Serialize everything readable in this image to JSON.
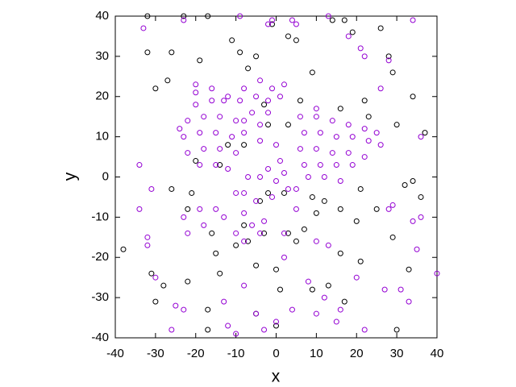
{
  "chart_data": {
    "type": "scatter",
    "xlabel": "x",
    "ylabel": "y",
    "xlim": [
      -40,
      40
    ],
    "ylim": [
      -40,
      40
    ],
    "xticks": [
      -40,
      -30,
      -20,
      -10,
      0,
      10,
      20,
      30,
      40
    ],
    "yticks": [
      -40,
      -30,
      -20,
      -10,
      0,
      10,
      20,
      30,
      40
    ],
    "grid": false,
    "series": [
      {
        "color": "#000000",
        "x": [
          -32,
          -23,
          -17,
          -11,
          -9,
          -32,
          -26,
          -19,
          -27,
          -30,
          -7,
          -5,
          3,
          5,
          9,
          14,
          17,
          19,
          26,
          28,
          29,
          34,
          30,
          37,
          16,
          22,
          23,
          -1,
          -3,
          -2,
          3,
          6,
          2,
          -8,
          -12,
          -14,
          -20,
          -21,
          -26,
          -22,
          -16,
          -15,
          -10,
          -8,
          -5,
          -4,
          -2,
          3,
          5,
          7,
          9,
          10,
          12,
          16,
          16,
          20,
          21,
          21,
          25,
          29,
          33,
          34,
          36,
          32,
          -38,
          -31,
          -28,
          -30,
          -22,
          -14,
          -17,
          -5,
          0,
          0,
          1,
          9,
          13,
          17,
          30,
          -7,
          -3,
          -17
        ],
        "values": [
          40,
          40,
          40,
          34,
          31,
          31,
          31,
          29,
          24,
          22,
          27,
          30,
          35,
          34,
          26,
          39,
          39,
          36,
          37,
          30,
          26,
          20,
          13,
          11,
          17,
          19,
          15,
          38,
          18,
          13,
          13,
          19,
          -4,
          8,
          8,
          3,
          4,
          -4,
          -3,
          -8,
          -14,
          -19,
          -17,
          -12,
          -22,
          -6,
          -4,
          -14,
          -16,
          -13,
          -5,
          -9,
          -6,
          -8,
          -19,
          -11,
          -21,
          -3,
          -8,
          -15,
          -23,
          -1,
          -5,
          -2,
          -18,
          -24,
          -27,
          -31,
          -26,
          -24,
          -38,
          -34,
          -23,
          -37,
          -28,
          -28,
          -27,
          -31,
          -38,
          -16,
          -14,
          -33
        ]
      },
      {
        "color": "#9400d3",
        "x": [
          -20,
          -16,
          -13,
          -22,
          -18,
          -14,
          -10,
          -23,
          -19,
          -15,
          -11,
          -22,
          -18,
          -14,
          -10,
          -19,
          -15,
          -12,
          -20,
          -16,
          -24,
          -8,
          -8,
          -4,
          -1,
          -9,
          -5,
          -2,
          1,
          -6,
          -2,
          -8,
          2,
          -4,
          6,
          10,
          14,
          18,
          22,
          25,
          7,
          11,
          15,
          19,
          23,
          26,
          6,
          10,
          14,
          18,
          22,
          7,
          11,
          15,
          19,
          8,
          12,
          16,
          10,
          5,
          -2,
          0,
          2,
          -4,
          3,
          -1,
          1,
          4,
          5,
          -1,
          -33,
          -9,
          -23,
          -2,
          13,
          34,
          18,
          -20,
          -12,
          21,
          22,
          26,
          28,
          -4,
          0,
          -10,
          -8,
          -5,
          -34,
          -32,
          -32,
          -23,
          -22,
          -19,
          -18,
          -15,
          -13,
          -10,
          -8,
          -6,
          -3,
          2,
          5,
          10,
          13,
          8,
          12,
          16,
          20,
          22,
          27,
          31,
          33,
          34,
          35,
          36,
          40,
          -26,
          -25,
          -23,
          -13,
          -10,
          -12,
          -8,
          -5,
          -3,
          0,
          4,
          10,
          15,
          -30,
          -31,
          -34,
          36,
          28,
          29,
          -8,
          -7,
          2,
          -4
        ],
        "values": [
          18,
          19,
          19,
          14,
          15,
          15,
          14,
          10,
          11,
          11,
          10,
          6,
          7,
          7,
          6,
          3,
          3,
          2,
          21,
          22,
          12,
          11,
          22,
          24,
          22,
          19,
          20,
          19,
          20,
          16,
          16,
          14,
          23,
          13,
          15,
          15,
          14,
          13,
          12,
          11,
          11,
          11,
          10,
          10,
          9,
          8,
          7,
          7,
          6,
          6,
          5,
          3,
          3,
          3,
          3,
          0,
          0,
          -1,
          17,
          -3,
          2,
          -1,
          1,
          0,
          -3,
          -5,
          4,
          39,
          38,
          39,
          37,
          40,
          39,
          38,
          40,
          39,
          35,
          23,
          20,
          32,
          30,
          22,
          29,
          9,
          8,
          -4,
          -9,
          -6,
          -8,
          -15,
          -17,
          -10,
          -14,
          -8,
          -12,
          -8,
          -10,
          -14,
          -16,
          -12,
          -11,
          -14,
          -8,
          -16,
          -17,
          -26,
          -30,
          -33,
          -25,
          -38,
          -28,
          -28,
          -31,
          -11,
          -18,
          -10,
          -24,
          -38,
          -32,
          -33,
          -31,
          -39,
          -37,
          -27,
          -34,
          -38,
          -36,
          -33,
          -34,
          -36,
          -25,
          -3,
          3,
          10,
          -8,
          -7,
          -4,
          0,
          -20,
          -14
        ]
      }
    ]
  }
}
